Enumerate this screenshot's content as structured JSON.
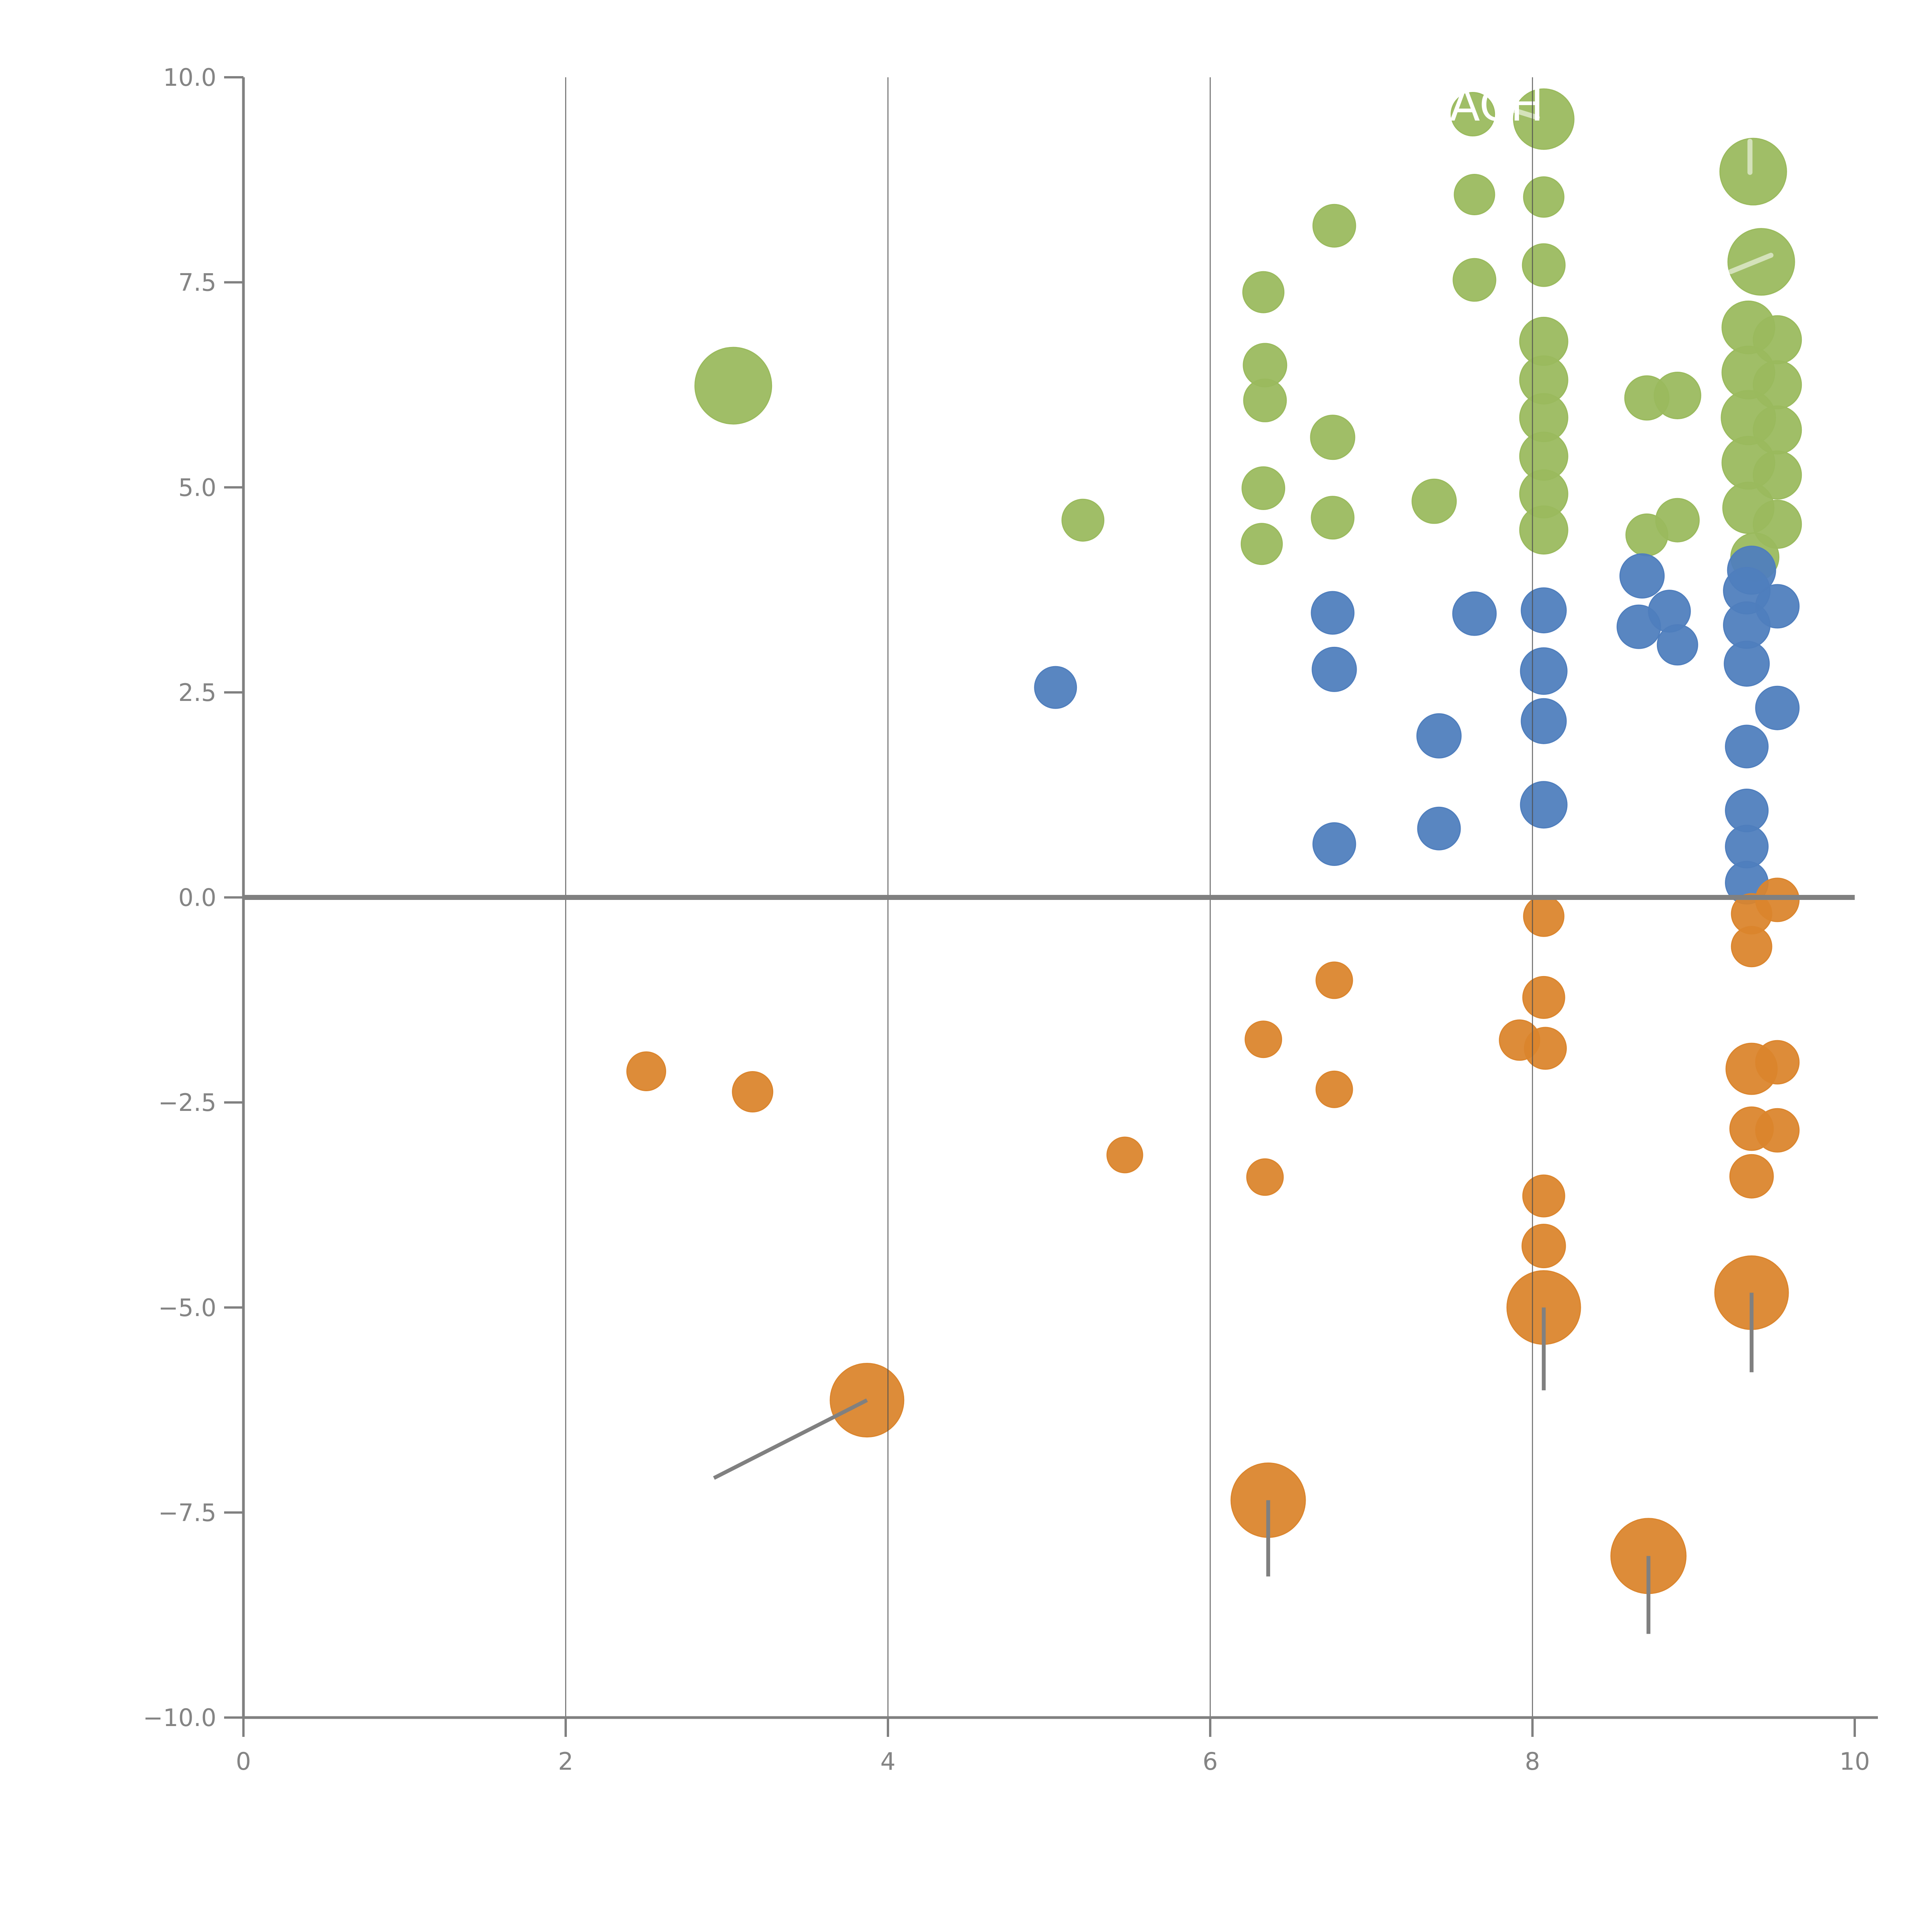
{
  "title": {
    "visible_fragment": "ACH",
    "color": "#ffffff",
    "note_rendered_white_on_white": true
  },
  "axes": {
    "x_tick_labels": [
      "0",
      "2",
      "4",
      "6",
      "8",
      "10"
    ],
    "x_tick_values": [
      0,
      2,
      4,
      6,
      8,
      10
    ],
    "y_tick_labels": [
      "10.0",
      "7.5",
      "5.0",
      "2.5",
      "0.0",
      "−2.5",
      "−5.0",
      "−7.5",
      "−10.0"
    ],
    "y_tick_values": [
      10,
      7.5,
      5,
      2.5,
      0,
      -2.5,
      -5,
      -7.5,
      -10
    ],
    "tick_label_color": "#848484",
    "spine_color": "#808080",
    "gridline_color": "#4d4d4d"
  },
  "chart_data": {
    "type": "scatter",
    "title_visible_fragment": "ACH",
    "xlabel": "",
    "ylabel": "",
    "xlim": [
      0,
      10
    ],
    "ylim": [
      -10,
      10
    ],
    "grid": "vertical-only",
    "gridlines_x": [
      2,
      4,
      6,
      8
    ],
    "zero_line_y": 0,
    "legend": "none",
    "series": [
      {
        "name": "green",
        "color": "#9aba5d",
        "points": [
          [
            3.04,
            6.24,
            99
          ],
          [
            5.21,
            4.6,
            54
          ],
          [
            6.33,
            7.38,
            53
          ],
          [
            6.34,
            6.49,
            56
          ],
          [
            6.34,
            6.06,
            55
          ],
          [
            6.33,
            4.99,
            55
          ],
          [
            6.32,
            4.31,
            53
          ],
          [
            6.77,
            8.19,
            55
          ],
          [
            6.76,
            5.61,
            57
          ],
          [
            6.76,
            4.63,
            55
          ],
          [
            7.39,
            4.83,
            57
          ],
          [
            7.63,
            9.55,
            56
          ],
          [
            7.64,
            8.57,
            52
          ],
          [
            7.64,
            7.53,
            55
          ],
          [
            8.07,
            9.49,
            78
          ],
          [
            8.07,
            8.54,
            52
          ],
          [
            8.07,
            7.71,
            55
          ],
          [
            8.07,
            6.78,
            62
          ],
          [
            8.07,
            6.31,
            62
          ],
          [
            8.07,
            5.85,
            62
          ],
          [
            8.07,
            5.38,
            62
          ],
          [
            8.07,
            4.92,
            62
          ],
          [
            8.07,
            4.48,
            62
          ],
          [
            8.71,
            6.09,
            57
          ],
          [
            8.9,
            6.12,
            60
          ],
          [
            8.71,
            4.42,
            54
          ],
          [
            8.9,
            4.6,
            56
          ],
          [
            9.37,
            8.85,
            86
          ],
          [
            9.42,
            7.75,
            86
          ],
          [
            9.34,
            6.95,
            68
          ],
          [
            9.52,
            6.8,
            62
          ],
          [
            9.34,
            6.4,
            68
          ],
          [
            9.52,
            6.25,
            62
          ],
          [
            9.34,
            5.85,
            70
          ],
          [
            9.52,
            5.7,
            62
          ],
          [
            9.34,
            5.3,
            68
          ],
          [
            9.52,
            5.15,
            62
          ],
          [
            9.34,
            4.75,
            66
          ],
          [
            9.52,
            4.55,
            62
          ],
          [
            9.38,
            4.15,
            62
          ]
        ]
      },
      {
        "name": "blue",
        "color": "#4f7ebd",
        "points": [
          [
            5.04,
            2.56,
            54
          ],
          [
            6.76,
            3.47,
            55
          ],
          [
            6.77,
            2.78,
            57
          ],
          [
            6.77,
            0.65,
            55
          ],
          [
            7.42,
            1.97,
            57
          ],
          [
            7.42,
            0.84,
            55
          ],
          [
            7.64,
            3.46,
            56
          ],
          [
            8.07,
            3.5,
            58
          ],
          [
            8.07,
            2.76,
            60
          ],
          [
            8.07,
            2.15,
            58
          ],
          [
            8.07,
            1.13,
            60
          ],
          [
            8.68,
            3.92,
            57
          ],
          [
            8.66,
            3.3,
            56
          ],
          [
            8.85,
            3.49,
            54
          ],
          [
            8.9,
            3.08,
            52
          ],
          [
            9.36,
            3.99,
            62
          ],
          [
            9.33,
            3.74,
            60
          ],
          [
            9.33,
            3.32,
            60
          ],
          [
            9.52,
            3.55,
            56
          ],
          [
            9.33,
            2.85,
            58
          ],
          [
            9.52,
            2.31,
            56
          ],
          [
            9.33,
            1.84,
            55
          ],
          [
            9.33,
            1.06,
            55
          ],
          [
            9.33,
            0.62,
            55
          ],
          [
            9.33,
            0.18,
            55
          ]
        ]
      },
      {
        "name": "orange",
        "color": "#db852d",
        "points": [
          [
            2.5,
            -2.12,
            50
          ],
          [
            3.16,
            -2.37,
            52
          ],
          [
            3.87,
            -6.13,
            95
          ],
          [
            5.47,
            -3.14,
            46
          ],
          [
            6.33,
            -1.73,
            47
          ],
          [
            6.34,
            -3.41,
            47
          ],
          [
            6.77,
            -1.01,
            47
          ],
          [
            6.77,
            -2.34,
            47
          ],
          [
            6.36,
            -7.35,
            96
          ],
          [
            7.92,
            -1.74,
            52
          ],
          [
            8.08,
            -1.84,
            54
          ],
          [
            8.07,
            -0.23,
            52
          ],
          [
            8.07,
            -1.22,
            54
          ],
          [
            8.07,
            -3.64,
            54
          ],
          [
            8.07,
            -4.25,
            56
          ],
          [
            8.07,
            -5.0,
            95
          ],
          [
            8.72,
            -8.03,
            97
          ],
          [
            9.52,
            -0.03,
            56
          ],
          [
            9.36,
            -0.2,
            52
          ],
          [
            9.36,
            -0.6,
            52
          ],
          [
            9.36,
            -2.09,
            66
          ],
          [
            9.52,
            -2.01,
            56
          ],
          [
            9.36,
            -2.82,
            56
          ],
          [
            9.52,
            -2.84,
            56
          ],
          [
            9.36,
            -3.4,
            56
          ],
          [
            9.36,
            -4.82,
            95
          ]
        ]
      }
    ],
    "stem_lines": {
      "color": "#808080",
      "segments": [
        [
          3.87,
          -6.13,
          2.92,
          -7.08
        ],
        [
          8.07,
          -5.0,
          8.07,
          -6.01
        ],
        [
          9.36,
          -4.82,
          9.36,
          -5.79
        ],
        [
          6.36,
          -7.35,
          6.36,
          -8.28
        ],
        [
          8.72,
          -8.03,
          8.72,
          -8.98
        ]
      ]
    },
    "highlight_lines": {
      "color": "#ffffff",
      "opacity": 0.55,
      "segments": [
        [
          7.85,
          9.62,
          8.03,
          9.51
        ],
        [
          9.35,
          9.22,
          9.35,
          8.84
        ],
        [
          9.23,
          7.63,
          9.48,
          7.83
        ],
        [
          3.3,
          -6.71,
          3.18,
          -6.83
        ],
        [
          3.04,
          -6.97,
          2.94,
          -7.07
        ]
      ]
    }
  }
}
